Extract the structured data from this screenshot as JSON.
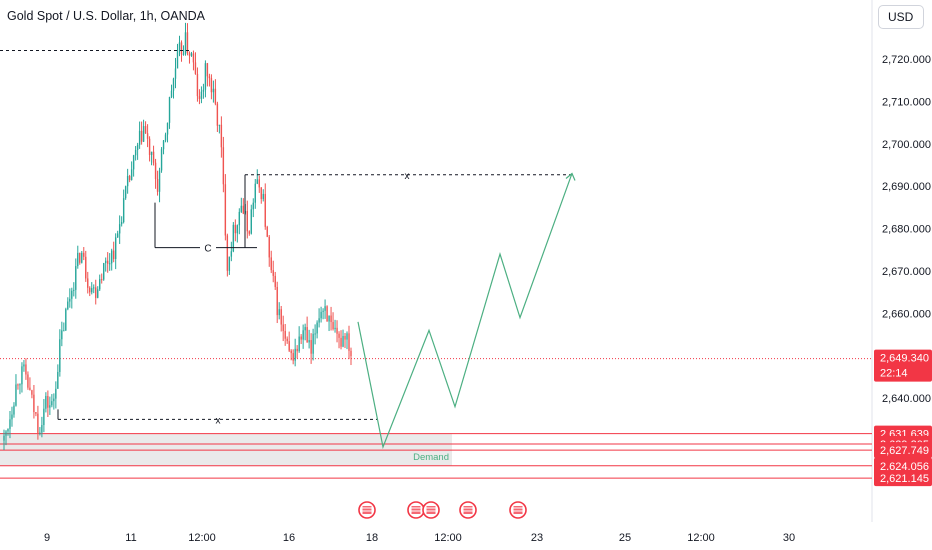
{
  "header": {
    "title": "Gold Spot / U.S. Dollar, 1h, OANDA",
    "currency_label": "USD"
  },
  "colors": {
    "up": "#26a69a",
    "down": "#ef5350",
    "forecast": "#4caf82",
    "level": "#f23645",
    "zone": "#e6e6e6",
    "demand_text": "#4caf82",
    "event_icon": "#f23645"
  },
  "chart_data": {
    "type": "line",
    "symbol": "Gold Spot / U.S. Dollar",
    "interval": "1h",
    "price_axis": {
      "ticks": [
        "2,720.000",
        "2,710.000",
        "2,700.000",
        "2,690.000",
        "2,680.000",
        "2,670.000",
        "2,660.000",
        "2,640.000"
      ],
      "tick_values": [
        2720,
        2710,
        2700,
        2690,
        2680,
        2670,
        2660,
        2640
      ],
      "ylim": [
        2618,
        2735
      ]
    },
    "time_axis": {
      "ticks": [
        "9",
        "11",
        "12:00",
        "16",
        "18",
        "12:00",
        "23",
        "25",
        "12:00",
        "30"
      ]
    },
    "current_price": {
      "label": "2,649.340",
      "countdown": "22:14",
      "value": 2649.34
    },
    "levels": [
      {
        "label": "2,631.639",
        "value": 2631.639
      },
      {
        "label": "2,629.205",
        "value": 2629.205
      },
      {
        "label": "2,627.749",
        "value": 2627.749
      },
      {
        "label": "2,624.056",
        "value": 2624.056
      },
      {
        "label": "2,621.145",
        "value": 2621.145
      }
    ],
    "demand_zone": {
      "label": "Demand",
      "top": 2631.6,
      "bottom": 2624.1
    },
    "annotations": [
      {
        "label": "x",
        "value": 2692.7
      },
      {
        "label": "C",
        "value": 2675.5
      },
      {
        "label": "x",
        "value": 2635.0
      },
      {
        "value": 2722.0
      }
    ],
    "price_path": [
      2630,
      2637,
      2645,
      2646,
      2639,
      2633,
      2639,
      2638,
      2652,
      2661,
      2668,
      2675,
      2668,
      2665,
      2670,
      2673,
      2676,
      2685,
      2692,
      2698,
      2704,
      2697,
      2690,
      2701,
      2713,
      2721,
      2724,
      2720,
      2709,
      2718,
      2711,
      2702,
      2672,
      2680,
      2686,
      2679,
      2690,
      2689,
      2672,
      2663,
      2655,
      2649,
      2652,
      2656,
      2650,
      2660,
      2662,
      2655,
      2653,
      2656,
      2649
    ],
    "forecast_path": [
      2658,
      2628.5,
      2656,
      2638,
      2674,
      2659,
      2693
    ]
  }
}
